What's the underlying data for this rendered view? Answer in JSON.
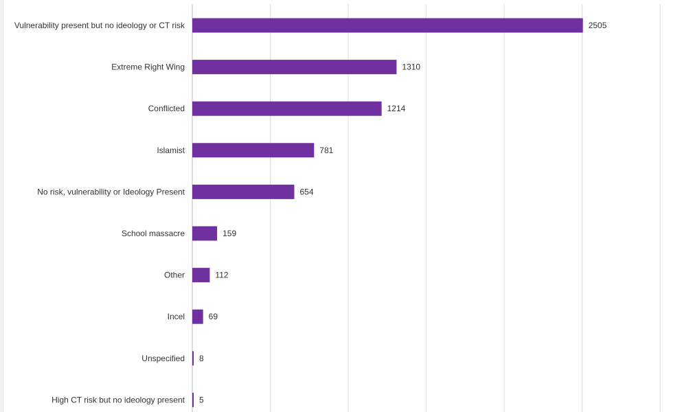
{
  "chart_data": {
    "type": "bar",
    "orientation": "horizontal",
    "title": "",
    "xlabel": "",
    "ylabel": "",
    "categories": [
      "Vulnerability present but no ideology or CT risk",
      "Extreme Right Wing",
      "Conflicted",
      "Islamist",
      "No risk, vulnerability or Ideology Present",
      "School massacre",
      "Other",
      "Incel",
      "Unspecified",
      "High CT risk but no ideology present"
    ],
    "values": [
      2505,
      1310,
      1214,
      781,
      654,
      159,
      112,
      69,
      8,
      5
    ],
    "xlim": [
      0,
      3000
    ],
    "grid": true,
    "data_labels": true,
    "legend": "none"
  },
  "colors": {
    "bar": "#7030a0",
    "grid": "#dcdcdc",
    "axis": "#bdbdbd",
    "text": "#333333",
    "background": "#ffffff"
  }
}
